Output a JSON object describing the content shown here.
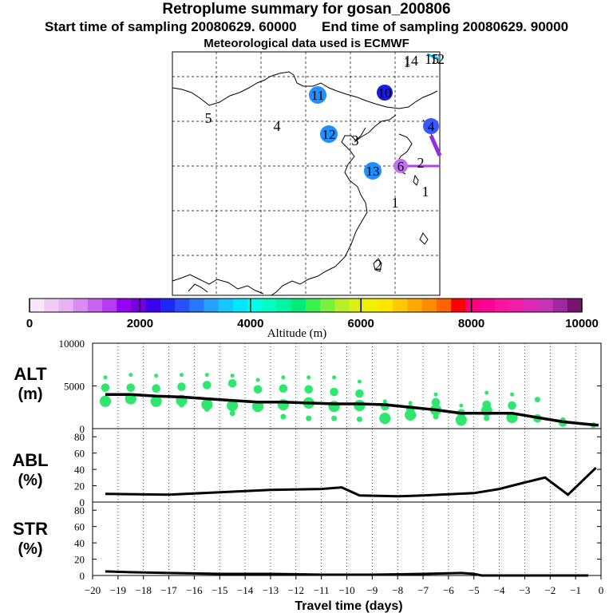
{
  "header": {
    "title": "Retroplume summary for gosan_200806",
    "start": "Start time of sampling 20080629. 60000",
    "end": "End time of sampling 20080629. 90000",
    "met": "Meteorological data used is ECMWF"
  },
  "chart_data": [
    {
      "type": "map",
      "title": "Retroplume summary for gosan_200806",
      "plume_labels": [
        {
          "text": "11",
          "color": "#1e90ff"
        },
        {
          "text": "10",
          "color": "#1c1ce0"
        },
        {
          "text": "12",
          "color": "#1e90ff"
        },
        {
          "text": "13",
          "color": "#1e90ff"
        },
        {
          "text": "4",
          "color": "#3a58ff"
        },
        {
          "text": "6",
          "color": "#c070f0"
        }
      ],
      "map_labels": [
        "5",
        "4",
        "3",
        "2",
        "1",
        "1",
        "2",
        "1",
        "14",
        "15",
        "12"
      ]
    },
    {
      "type": "colorbar",
      "xlabel": "Altitude (m)",
      "range": [
        0,
        10000
      ],
      "ticks": [
        0,
        2000,
        4000,
        6000,
        8000,
        10000
      ],
      "colors": [
        "#f7e6f7",
        "#f0ccf5",
        "#e8b3f0",
        "#dc8cf0",
        "#c864f0",
        "#b43cf5",
        "#9600f5",
        "#7800dc",
        "#3c00f0",
        "#1e28f5",
        "#2850ff",
        "#2878ff",
        "#28a0ff",
        "#14c8ff",
        "#00e6ff",
        "#00ffe6",
        "#00ffbe",
        "#00f5a0",
        "#00eb78",
        "#3cf050",
        "#78f03c",
        "#b4f028",
        "#dcf014",
        "#f0f000",
        "#ffe600",
        "#ffc800",
        "#ffaa00",
        "#ff8c00",
        "#ff6400",
        "#ff0000",
        "#ff0080",
        "#ff0096",
        "#ff14a0",
        "#f01eaa",
        "#dc28b4",
        "#c832b4",
        "#a028a0",
        "#78146e"
      ]
    },
    {
      "type": "line",
      "ylabel_main": "ALT",
      "ylabel_unit": "(m)",
      "ylim": [
        0,
        10000
      ],
      "yticks": [
        0,
        5000,
        10000
      ],
      "x": [
        -19.5,
        -18.5,
        -17.5,
        -16.5,
        -15.5,
        -14.5,
        -13.5,
        -12.5,
        -11.5,
        -10.5,
        -9.5,
        -8.5,
        -7.5,
        -6.5,
        -5.5,
        -4.5,
        -3.5,
        -2.5,
        -1.5,
        -0.5,
        -0.1
      ],
      "line": [
        4000,
        4000,
        3800,
        3700,
        3500,
        3300,
        3100,
        3100,
        3000,
        2900,
        2900,
        2800,
        2500,
        2200,
        1800,
        1800,
        1800,
        1300,
        800,
        500,
        400
      ],
      "dots": [
        {
          "x": -19.5,
          "values": [
            6000,
            4800,
            3200,
            3000
          ]
        },
        {
          "x": -18.5,
          "values": [
            6300,
            4800,
            3500,
            3300
          ]
        },
        {
          "x": -17.5,
          "values": [
            6200,
            4700,
            3200
          ]
        },
        {
          "x": -16.5,
          "values": [
            6300,
            4900,
            3300,
            2800
          ]
        },
        {
          "x": -15.5,
          "values": [
            6300,
            5100,
            2800,
            2300
          ]
        },
        {
          "x": -14.5,
          "values": [
            6200,
            5300,
            2700,
            1800
          ]
        },
        {
          "x": -13.5,
          "values": [
            5700,
            4600,
            2600
          ]
        },
        {
          "x": -12.5,
          "values": [
            6000,
            4700,
            2800,
            1400
          ]
        },
        {
          "x": -11.5,
          "values": [
            6000,
            4600,
            3000,
            1200
          ]
        },
        {
          "x": -10.5,
          "values": [
            6000,
            4300,
            2600,
            1200
          ]
        },
        {
          "x": -9.5,
          "values": [
            5500,
            4100,
            2700,
            1100
          ]
        },
        {
          "x": -8.5,
          "values": [
            3200,
            2600,
            1200
          ]
        },
        {
          "x": -7.5,
          "values": [
            3000,
            2300,
            1600
          ]
        },
        {
          "x": -6.5,
          "values": [
            4000,
            3100,
            2200,
            1400
          ]
        },
        {
          "x": -5.5,
          "values": [
            2700,
            1800,
            1000
          ]
        },
        {
          "x": -4.5,
          "values": [
            4200,
            2800,
            2100,
            1200
          ]
        },
        {
          "x": -3.5,
          "values": [
            4000,
            2700,
            1300
          ]
        },
        {
          "x": -2.5,
          "values": [
            3400,
            1200
          ]
        },
        {
          "x": -1.5,
          "values": [
            1000,
            700
          ]
        },
        {
          "x": -0.3,
          "values": [
            400
          ]
        }
      ]
    },
    {
      "type": "line",
      "ylabel_main": "ABL",
      "ylabel_unit": "(%)",
      "ylim": [
        0,
        90
      ],
      "yticks": [
        0,
        20,
        40,
        60,
        80
      ],
      "x": [
        -19.5,
        -17,
        -15,
        -13,
        -11,
        -10.2,
        -9.5,
        -8,
        -7,
        -5,
        -4,
        -3,
        -2.2,
        -1.3,
        -0.2
      ],
      "values": [
        10,
        9,
        12,
        15,
        16,
        18,
        8,
        7,
        8,
        11,
        16,
        24,
        30,
        9,
        42
      ]
    },
    {
      "type": "line",
      "ylabel_main": "STR",
      "ylabel_unit": "(%)",
      "ylim": [
        0,
        90
      ],
      "yticks": [
        0,
        20,
        40,
        60,
        80
      ],
      "x": [
        -19.5,
        -18.5,
        -17,
        -15,
        -13,
        -11,
        -9,
        -7,
        -5.5,
        -5,
        -4.7,
        -3,
        -0.5
      ],
      "values": [
        5,
        4,
        3,
        2,
        2,
        1,
        1,
        2,
        3,
        2,
        0,
        0,
        0
      ]
    },
    {
      "type": "axis",
      "xlabel": "Travel time (days)",
      "xlim": [
        -20,
        0
      ],
      "xticks": [
        -20,
        -19,
        -18,
        -17,
        -16,
        -15,
        -14,
        -13,
        -12,
        -11,
        -10,
        -9,
        -8,
        -7,
        -6,
        -5,
        -4,
        -3,
        -2,
        -1,
        0
      ]
    }
  ]
}
